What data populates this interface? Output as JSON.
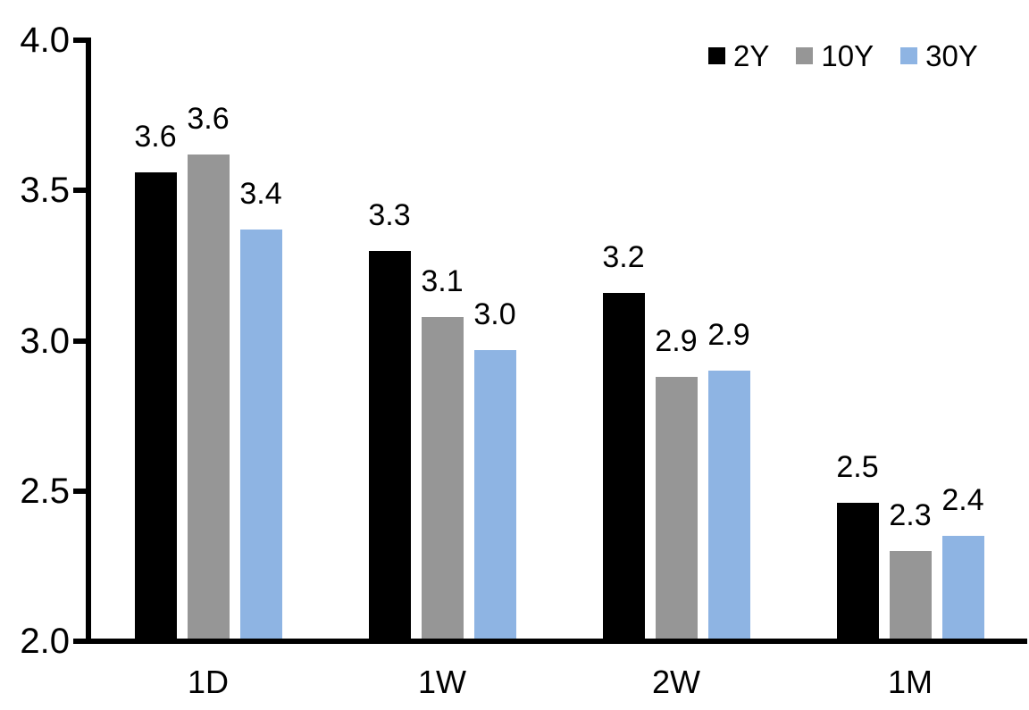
{
  "chart_data": {
    "type": "bar",
    "title": "",
    "xlabel": "",
    "ylabel": "",
    "categories": [
      "1D",
      "1W",
      "2W",
      "1M"
    ],
    "series": [
      {
        "name": "2Y",
        "color": "#000000",
        "values": [
          3.6,
          3.3,
          3.2,
          2.5
        ],
        "labels": [
          "3.6",
          "3.3",
          "3.2",
          "2.5"
        ],
        "values_precise": [
          3.56,
          3.3,
          3.16,
          2.46
        ]
      },
      {
        "name": "10Y",
        "color": "#969696",
        "values": [
          3.6,
          3.1,
          2.9,
          2.3
        ],
        "labels": [
          "3.6",
          "3.1",
          "2.9",
          "2.3"
        ],
        "values_precise": [
          3.62,
          3.08,
          2.88,
          2.3
        ]
      },
      {
        "name": "30Y",
        "color": "#8EB4E3",
        "values": [
          3.4,
          3.0,
          2.9,
          2.4
        ],
        "labels": [
          "3.4",
          "3.0",
          "2.9",
          "2.4"
        ],
        "values_precise": [
          3.37,
          2.97,
          2.9,
          2.35
        ]
      }
    ],
    "ylim": [
      2.0,
      4.0
    ],
    "ytick_values": [
      4.0,
      3.5,
      3.0,
      2.5,
      2.0
    ],
    "yticks": [
      "4.0",
      "3.5",
      "3.0",
      "2.5",
      "2.0"
    ],
    "grid": false,
    "data_labels_shown": true,
    "legend_position": "top-right",
    "axis_color": "#000000",
    "background": "#FFFFFF"
  }
}
